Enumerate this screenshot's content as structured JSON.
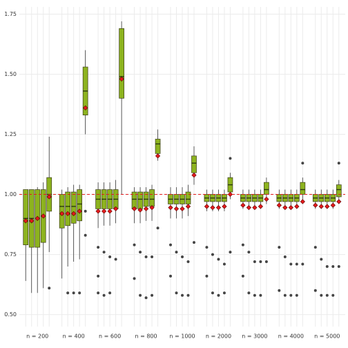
{
  "chart_data": {
    "type": "box",
    "categories": [
      "n = 200",
      "n = 400",
      "n = 600",
      "n = 800",
      "n = 1000",
      "n = 2000",
      "n = 3000",
      "n = 4000",
      "n = 5000"
    ],
    "ylim": [
      0.45,
      1.78
    ],
    "yticks": [
      {
        "value": 0.5,
        "label": "0.50"
      },
      0.75,
      {
        "value": 1,
        "label": "1.00"
      },
      1.25,
      {
        "value": 1.5,
        "label": "1.50"
      },
      1.75
    ],
    "grid": true,
    "reference": 1,
    "color": "#8db31f",
    "mean_color": "#e31a1c",
    "reference_color": "#e31a1c",
    "boxes": [
      [
        {
          "min": 0.64,
          "q1": 0.79,
          "median": 0.9,
          "q3": 1.02,
          "max": 1.02,
          "mean": 0.89,
          "outliers": []
        },
        {
          "min": 0.59,
          "q1": 0.78,
          "median": 0.9,
          "q3": 1.02,
          "max": 1.02,
          "mean": 0.89,
          "outliers": []
        },
        {
          "min": 0.59,
          "q1": 0.78,
          "median": 0.9,
          "q3": 1.02,
          "max": 1.03,
          "mean": 0.9,
          "outliers": []
        },
        {
          "min": 0.61,
          "q1": 0.8,
          "median": 0.91,
          "q3": 1.02,
          "max": 1.05,
          "mean": 0.91,
          "outliers": []
        },
        {
          "min": 0.76,
          "q1": 0.93,
          "median": 1.0,
          "q3": 1.07,
          "max": 1.24,
          "mean": 0.99,
          "outliers": [
            0.61
          ]
        }
      ],
      [
        {
          "min": 0.65,
          "q1": 0.86,
          "median": 0.95,
          "q3": 1.0,
          "max": 1.02,
          "mean": 0.92,
          "outliers": []
        },
        {
          "min": 0.7,
          "q1": 0.87,
          "median": 0.95,
          "q3": 1.01,
          "max": 1.03,
          "mean": 0.92,
          "outliers": [
            0.59
          ]
        },
        {
          "min": 0.72,
          "q1": 0.88,
          "median": 0.95,
          "q3": 1.01,
          "max": 1.04,
          "mean": 0.92,
          "outliers": [
            0.59
          ]
        },
        {
          "min": 0.73,
          "q1": 0.89,
          "median": 0.96,
          "q3": 1.02,
          "max": 1.04,
          "mean": 0.93,
          "outliers": [
            0.59
          ]
        },
        {
          "min": 1.25,
          "q1": 1.33,
          "median": 1.43,
          "q3": 1.53,
          "max": 1.6,
          "mean": 1.36,
          "outliers": [
            0.93,
            0.83
          ]
        }
      ],
      [
        {
          "min": 0.86,
          "q1": 0.94,
          "median": 0.98,
          "q3": 1.02,
          "max": 1.05,
          "mean": 0.93,
          "outliers": [
            0.78,
            0.66,
            0.59
          ]
        },
        {
          "min": 0.87,
          "q1": 0.94,
          "median": 0.98,
          "q3": 1.02,
          "max": 1.05,
          "mean": 0.93,
          "outliers": [
            0.76,
            0.58
          ]
        },
        {
          "min": 0.87,
          "q1": 0.94,
          "median": 0.98,
          "q3": 1.02,
          "max": 1.05,
          "mean": 0.93,
          "outliers": [
            0.74,
            0.59
          ]
        },
        {
          "min": 0.88,
          "q1": 0.94,
          "median": 0.98,
          "q3": 1.02,
          "max": 1.06,
          "mean": 0.94,
          "outliers": [
            0.73
          ]
        },
        {
          "min": 1.0,
          "q1": 1.4,
          "median": 1.49,
          "q3": 1.69,
          "max": 1.72,
          "mean": 1.48,
          "outliers": []
        }
      ],
      [
        {
          "min": 0.88,
          "q1": 0.94,
          "median": 0.98,
          "q3": 1.01,
          "max": 1.03,
          "mean": 0.94,
          "outliers": [
            0.79,
            0.65
          ]
        },
        {
          "min": 0.88,
          "q1": 0.94,
          "median": 0.98,
          "q3": 1.01,
          "max": 1.03,
          "mean": 0.935,
          "outliers": [
            0.76,
            0.58
          ]
        },
        {
          "min": 0.89,
          "q1": 0.95,
          "median": 0.98,
          "q3": 1.01,
          "max": 1.03,
          "mean": 0.94,
          "outliers": [
            0.74,
            0.57
          ]
        },
        {
          "min": 0.89,
          "q1": 0.95,
          "median": 0.98,
          "q3": 1.02,
          "max": 1.04,
          "mean": 0.945,
          "outliers": [
            0.74,
            0.58
          ]
        },
        {
          "min": 1.14,
          "q1": 1.17,
          "median": 1.21,
          "q3": 1.23,
          "max": 1.27,
          "mean": 1.16,
          "outliers": [
            0.86
          ]
        }
      ],
      [
        {
          "min": 0.9,
          "q1": 0.96,
          "median": 0.98,
          "q3": 1.0,
          "max": 1.03,
          "mean": 0.945,
          "outliers": [
            0.79,
            0.66
          ]
        },
        {
          "min": 0.9,
          "q1": 0.96,
          "median": 0.98,
          "q3": 1.0,
          "max": 1.03,
          "mean": 0.94,
          "outliers": [
            0.76,
            0.59
          ]
        },
        {
          "min": 0.9,
          "q1": 0.96,
          "median": 0.98,
          "q3": 1.0,
          "max": 1.03,
          "mean": 0.94,
          "outliers": [
            0.74,
            0.58
          ]
        },
        {
          "min": 0.91,
          "q1": 0.96,
          "median": 0.98,
          "q3": 1.01,
          "max": 1.04,
          "mean": 0.95,
          "outliers": [
            0.72,
            0.58
          ]
        },
        {
          "min": 1.04,
          "q1": 1.09,
          "median": 1.13,
          "q3": 1.16,
          "max": 1.2,
          "mean": 1.08,
          "outliers": [
            0.8
          ]
        }
      ],
      [
        {
          "min": 0.93,
          "q1": 0.97,
          "median": 0.985,
          "q3": 1.0,
          "max": 1.02,
          "mean": 0.95,
          "outliers": [
            0.78,
            0.66
          ]
        },
        {
          "min": 0.93,
          "q1": 0.97,
          "median": 0.985,
          "q3": 1.0,
          "max": 1.02,
          "mean": 0.945,
          "outliers": [
            0.75,
            0.59
          ]
        },
        {
          "min": 0.93,
          "q1": 0.97,
          "median": 0.985,
          "q3": 1.0,
          "max": 1.02,
          "mean": 0.945,
          "outliers": [
            0.73,
            0.58
          ]
        },
        {
          "min": 0.93,
          "q1": 0.97,
          "median": 0.985,
          "q3": 1.0,
          "max": 1.02,
          "mean": 0.95,
          "outliers": [
            0.71,
            0.59
          ]
        },
        {
          "min": 0.98,
          "q1": 1.01,
          "median": 1.04,
          "q3": 1.07,
          "max": 1.09,
          "mean": 1.0,
          "outliers": [
            1.15,
            0.76
          ]
        }
      ],
      [
        {
          "min": 0.94,
          "q1": 0.97,
          "median": 0.985,
          "q3": 1.0,
          "max": 1.02,
          "mean": 0.955,
          "outliers": [
            0.79,
            0.66
          ]
        },
        {
          "min": 0.94,
          "q1": 0.97,
          "median": 0.985,
          "q3": 1.0,
          "max": 1.02,
          "mean": 0.945,
          "outliers": [
            0.76,
            0.59
          ]
        },
        {
          "min": 0.94,
          "q1": 0.97,
          "median": 0.985,
          "q3": 1.0,
          "max": 1.02,
          "mean": 0.945,
          "outliers": [
            0.72,
            0.58
          ]
        },
        {
          "min": 0.94,
          "q1": 0.97,
          "median": 0.985,
          "q3": 1.0,
          "max": 1.02,
          "mean": 0.95,
          "outliers": [
            0.72,
            0.58
          ]
        },
        {
          "min": 0.96,
          "q1": 1.0,
          "median": 1.02,
          "q3": 1.05,
          "max": 1.07,
          "mean": 0.98,
          "outliers": [
            0.72
          ]
        }
      ],
      [
        {
          "min": 0.94,
          "q1": 0.97,
          "median": 0.985,
          "q3": 1.0,
          "max": 1.02,
          "mean": 0.955,
          "outliers": [
            0.78,
            0.6
          ]
        },
        {
          "min": 0.94,
          "q1": 0.97,
          "median": 0.985,
          "q3": 1.0,
          "max": 1.02,
          "mean": 0.945,
          "outliers": [
            0.74,
            0.58
          ]
        },
        {
          "min": 0.94,
          "q1": 0.97,
          "median": 0.985,
          "q3": 1.0,
          "max": 1.02,
          "mean": 0.945,
          "outliers": [
            0.71,
            0.58
          ]
        },
        {
          "min": 0.94,
          "q1": 0.97,
          "median": 0.985,
          "q3": 1.0,
          "max": 1.02,
          "mean": 0.95,
          "outliers": [
            0.71,
            0.58
          ]
        },
        {
          "min": 0.97,
          "q1": 1.0,
          "median": 1.02,
          "q3": 1.05,
          "max": 1.07,
          "mean": 0.97,
          "outliers": [
            1.13,
            0.71
          ]
        }
      ],
      [
        {
          "min": 0.94,
          "q1": 0.97,
          "median": 0.985,
          "q3": 1.0,
          "max": 1.02,
          "mean": 0.955,
          "outliers": [
            0.78,
            0.6
          ]
        },
        {
          "min": 0.94,
          "q1": 0.97,
          "median": 0.985,
          "q3": 1.0,
          "max": 1.02,
          "mean": 0.95,
          "outliers": [
            0.73,
            0.58
          ]
        },
        {
          "min": 0.94,
          "q1": 0.97,
          "median": 0.985,
          "q3": 1.0,
          "max": 1.02,
          "mean": 0.95,
          "outliers": [
            0.7,
            0.58
          ]
        },
        {
          "min": 0.94,
          "q1": 0.97,
          "median": 0.985,
          "q3": 1.0,
          "max": 1.02,
          "mean": 0.955,
          "outliers": [
            0.7,
            0.58
          ]
        },
        {
          "min": 0.97,
          "q1": 0.99,
          "median": 1.02,
          "q3": 1.04,
          "max": 1.06,
          "mean": 0.97,
          "outliers": [
            1.13,
            0.7
          ]
        }
      ]
    ]
  }
}
